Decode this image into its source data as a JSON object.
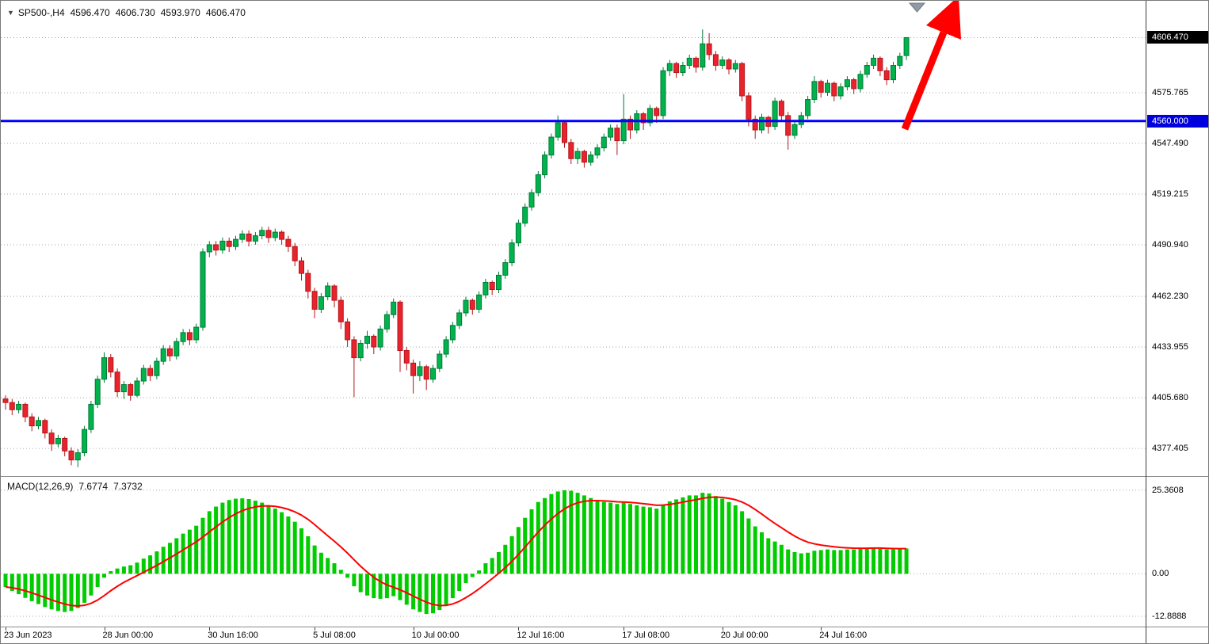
{
  "info_bar": {
    "symbol_period": "SP500-,H4",
    "open": "4596.470",
    "high": "4606.730",
    "low": "4593.970",
    "close": "4606.470"
  },
  "macd_bar": {
    "label": "MACD(12,26,9)",
    "macd_value": "7.6774",
    "signal_value": "7.3732"
  },
  "colors": {
    "bull": "#00b34d",
    "bull_stroke": "#007a36",
    "bear": "#e8232b",
    "bear_stroke": "#b3151c",
    "macd_bar": "#00cc00",
    "signal": "#ff0000",
    "hline": "#0000ff",
    "grid": "#a8a8a8",
    "current_price_bg": "#000000",
    "hline_label_bg": "#0000dd",
    "arrow": "#ff0000",
    "shift_marker": "#8f9aa5"
  },
  "chart_data": {
    "type": "candlestick_with_macd",
    "symbol": "SP500-",
    "timeframe": "H4",
    "ylim": [
      4362,
      4627
    ],
    "price_axis": {
      "gridlines": [
        {
          "value": 4575.765,
          "label": "4575.765"
        },
        {
          "value": 4547.49,
          "label": "4547.490"
        },
        {
          "value": 4519.215,
          "label": "4519.215"
        },
        {
          "value": 4490.94,
          "label": "4490.940"
        },
        {
          "value": 4462.23,
          "label": "4462.230"
        },
        {
          "value": 4433.955,
          "label": "4433.955"
        },
        {
          "value": 4405.68,
          "label": "4405.680"
        },
        {
          "value": 4377.405,
          "label": "4377.405"
        }
      ],
      "current_price": {
        "value": 4606.47,
        "label": "4606.470"
      },
      "hline": {
        "value": 4560.0,
        "label": "4560.000"
      }
    },
    "x_axis": {
      "labels": [
        {
          "index": 0,
          "label": "23 Jun 2023"
        },
        {
          "index": 15,
          "label": "28 Jun 00:00"
        },
        {
          "index": 31,
          "label": "30 Jun 16:00"
        },
        {
          "index": 47,
          "label": "5 Jul 08:00"
        },
        {
          "index": 62,
          "label": "10 Jul 00:00"
        },
        {
          "index": 78,
          "label": "12 Jul 16:00"
        },
        {
          "index": 94,
          "label": "17 Jul 08:00"
        },
        {
          "index": 109,
          "label": "20 Jul 00:00"
        },
        {
          "index": 124,
          "label": "24 Jul 16:00"
        }
      ]
    },
    "candles": [
      [
        4405,
        4407,
        4399,
        4403
      ],
      [
        4403,
        4405,
        4396,
        4399
      ],
      [
        4399,
        4404,
        4397,
        4402
      ],
      [
        4402,
        4403,
        4392,
        4395
      ],
      [
        4395,
        4397,
        4387,
        4390
      ],
      [
        4390,
        4395,
        4388,
        4393
      ],
      [
        4393,
        4394,
        4383,
        4386
      ],
      [
        4386,
        4388,
        4376,
        4380
      ],
      [
        4380,
        4385,
        4378,
        4383
      ],
      [
        4383,
        4384,
        4373,
        4376
      ],
      [
        4376,
        4378,
        4368,
        4371
      ],
      [
        4371,
        4377,
        4367,
        4375
      ],
      [
        4375,
        4390,
        4373,
        4388
      ],
      [
        4388,
        4404,
        4386,
        4402
      ],
      [
        4402,
        4418,
        4400,
        4416
      ],
      [
        4416,
        4431,
        4414,
        4428
      ],
      [
        4428,
        4430,
        4417,
        4420
      ],
      [
        4420,
        4422,
        4406,
        4409
      ],
      [
        4409,
        4415,
        4405,
        4413
      ],
      [
        4413,
        4414,
        4404,
        4407
      ],
      [
        4407,
        4417,
        4406,
        4415
      ],
      [
        4415,
        4424,
        4413,
        4422
      ],
      [
        4422,
        4424,
        4415,
        4418
      ],
      [
        4418,
        4428,
        4416,
        4426
      ],
      [
        4426,
        4435,
        4424,
        4433
      ],
      [
        4433,
        4435,
        4426,
        4429
      ],
      [
        4429,
        4439,
        4427,
        4437
      ],
      [
        4437,
        4444,
        4435,
        4442
      ],
      [
        4442,
        4444,
        4435,
        4438
      ],
      [
        4438,
        4447,
        4436,
        4445
      ],
      [
        4445,
        4489,
        4443,
        4487
      ],
      [
        4487,
        4493,
        4484,
        4491
      ],
      [
        4491,
        4493,
        4485,
        4488
      ],
      [
        4488,
        4495,
        4486,
        4493
      ],
      [
        4493,
        4495,
        4487,
        4490
      ],
      [
        4490,
        4496,
        4488,
        4494
      ],
      [
        4494,
        4499,
        4492,
        4497
      ],
      [
        4497,
        4499,
        4490,
        4493
      ],
      [
        4493,
        4498,
        4491,
        4496
      ],
      [
        4496,
        4501,
        4494,
        4499
      ],
      [
        4499,
        4501,
        4492,
        4495
      ],
      [
        4495,
        4500,
        4493,
        4498
      ],
      [
        4498,
        4499,
        4491,
        4494
      ],
      [
        4494,
        4496,
        4487,
        4490
      ],
      [
        4490,
        4492,
        4479,
        4482
      ],
      [
        4482,
        4484,
        4471,
        4475
      ],
      [
        4475,
        4477,
        4461,
        4465
      ],
      [
        4465,
        4467,
        4450,
        4455
      ],
      [
        4455,
        4464,
        4453,
        4462
      ],
      [
        4462,
        4470,
        4460,
        4468
      ],
      [
        4468,
        4469,
        4456,
        4460
      ],
      [
        4460,
        4462,
        4444,
        4448
      ],
      [
        4448,
        4450,
        4434,
        4438
      ],
      [
        4438,
        4440,
        4406,
        4428
      ],
      [
        4428,
        4438,
        4426,
        4436
      ],
      [
        4436,
        4443,
        4433,
        4440
      ],
      [
        4440,
        4441,
        4430,
        4434
      ],
      [
        4434,
        4446,
        4432,
        4444
      ],
      [
        4444,
        4454,
        4442,
        4452
      ],
      [
        4452,
        4461,
        4450,
        4459
      ],
      [
        4459,
        4460,
        4420,
        4432
      ],
      [
        4432,
        4434,
        4421,
        4425
      ],
      [
        4425,
        4427,
        4408,
        4418
      ],
      [
        4418,
        4426,
        4415,
        4423
      ],
      [
        4423,
        4424,
        4410,
        4416
      ],
      [
        4416,
        4424,
        4414,
        4422
      ],
      [
        4422,
        4432,
        4420,
        4430
      ],
      [
        4430,
        4440,
        4428,
        4438
      ],
      [
        4438,
        4448,
        4436,
        4446
      ],
      [
        4446,
        4455,
        4444,
        4453
      ],
      [
        4453,
        4462,
        4451,
        4460
      ],
      [
        4460,
        4461,
        4452,
        4455
      ],
      [
        4455,
        4465,
        4453,
        4463
      ],
      [
        4463,
        4472,
        4461,
        4470
      ],
      [
        4470,
        4471,
        4463,
        4466
      ],
      [
        4466,
        4476,
        4464,
        4474
      ],
      [
        4474,
        4483,
        4472,
        4481
      ],
      [
        4481,
        4494,
        4479,
        4492
      ],
      [
        4492,
        4505,
        4490,
        4503
      ],
      [
        4503,
        4514,
        4501,
        4512
      ],
      [
        4512,
        4522,
        4510,
        4520
      ],
      [
        4520,
        4532,
        4518,
        4530
      ],
      [
        4530,
        4543,
        4528,
        4541
      ],
      [
        4541,
        4553,
        4539,
        4551
      ],
      [
        4551,
        4563,
        4549,
        4559
      ],
      [
        4559,
        4560,
        4545,
        4548
      ],
      [
        4548,
        4550,
        4536,
        4539
      ],
      [
        4539,
        4545,
        4536,
        4543
      ],
      [
        4543,
        4544,
        4534,
        4537
      ],
      [
        4537,
        4543,
        4535,
        4541
      ],
      [
        4541,
        4547,
        4539,
        4545
      ],
      [
        4545,
        4553,
        4543,
        4551
      ],
      [
        4551,
        4558,
        4549,
        4556
      ],
      [
        4556,
        4558,
        4541,
        4549
      ],
      [
        4549,
        4575,
        4547,
        4561
      ],
      [
        4561,
        4563,
        4550,
        4555
      ],
      [
        4555,
        4566,
        4553,
        4564
      ],
      [
        4564,
        4565,
        4555,
        4559
      ],
      [
        4559,
        4569,
        4557,
        4567
      ],
      [
        4567,
        4568,
        4559,
        4563
      ],
      [
        4563,
        4590,
        4561,
        4588
      ],
      [
        4588,
        4594,
        4585,
        4592
      ],
      [
        4592,
        4593,
        4584,
        4587
      ],
      [
        4587,
        4593,
        4585,
        4591
      ],
      [
        4591,
        4597,
        4589,
        4595
      ],
      [
        4595,
        4596,
        4587,
        4590
      ],
      [
        4590,
        4611,
        4588,
        4603
      ],
      [
        4603,
        4609,
        4594,
        4597
      ],
      [
        4597,
        4599,
        4588,
        4591
      ],
      [
        4591,
        4596,
        4589,
        4594
      ],
      [
        4594,
        4595,
        4586,
        4589
      ],
      [
        4589,
        4594,
        4587,
        4592
      ],
      [
        4592,
        4593,
        4571,
        4574
      ],
      [
        4574,
        4576,
        4557,
        4561
      ],
      [
        4561,
        4563,
        4550,
        4555
      ],
      [
        4555,
        4564,
        4553,
        4562
      ],
      [
        4562,
        4563,
        4553,
        4557
      ],
      [
        4557,
        4573,
        4555,
        4571
      ],
      [
        4571,
        4572,
        4560,
        4563
      ],
      [
        4563,
        4565,
        4544,
        4552
      ],
      [
        4552,
        4560,
        4550,
        4558
      ],
      [
        4558,
        4565,
        4556,
        4563
      ],
      [
        4563,
        4574,
        4561,
        4572
      ],
      [
        4572,
        4585,
        4570,
        4582
      ],
      [
        4582,
        4583,
        4573,
        4576
      ],
      [
        4576,
        4583,
        4574,
        4581
      ],
      [
        4581,
        4582,
        4571,
        4574
      ],
      [
        4574,
        4581,
        4572,
        4579
      ],
      [
        4579,
        4585,
        4577,
        4583
      ],
      [
        4583,
        4584,
        4575,
        4578
      ],
      [
        4578,
        4588,
        4576,
        4586
      ],
      [
        4586,
        4593,
        4584,
        4591
      ],
      [
        4591,
        4597,
        4589,
        4595
      ],
      [
        4595,
        4596,
        4585,
        4588
      ],
      [
        4588,
        4590,
        4580,
        4583
      ],
      [
        4583,
        4593,
        4581,
        4591
      ],
      [
        4591,
        4598,
        4589,
        4596
      ],
      [
        4596.47,
        4606.73,
        4593.97,
        4606.47
      ]
    ],
    "macd": {
      "params": [
        12,
        26,
        9
      ],
      "ylim": [
        -16.03,
        29.43
      ],
      "axis_labels": [
        {
          "value": 25.3608,
          "label": "25.3608"
        },
        {
          "value": 0,
          "label": "0.00"
        },
        {
          "value": -12.8888,
          "label": "-12.8888"
        }
      ],
      "histogram": [
        -4.0,
        -5.2,
        -6.2,
        -7.3,
        -8.3,
        -9.2,
        -10.1,
        -10.8,
        -11.3,
        -11.6,
        -11.3,
        -10.4,
        -8.8,
        -6.6,
        -4.0,
        -1.2,
        0.8,
        1.6,
        2.2,
        2.6,
        3.4,
        4.6,
        5.6,
        6.8,
        8.2,
        9.4,
        10.8,
        12.2,
        13.4,
        14.6,
        17.0,
        19.0,
        20.4,
        21.6,
        22.4,
        22.8,
        22.9,
        22.7,
        22.2,
        21.6,
        20.8,
        19.8,
        18.7,
        17.4,
        15.8,
        13.8,
        11.4,
        8.6,
        6.4,
        4.8,
        3.2,
        1.2,
        -1.2,
        -3.8,
        -5.6,
        -6.6,
        -7.4,
        -7.6,
        -7.4,
        -6.8,
        -8.0,
        -9.4,
        -10.8,
        -11.6,
        -12.2,
        -12.0,
        -11.0,
        -9.4,
        -7.4,
        -5.2,
        -2.8,
        -1.0,
        1.0,
        3.2,
        4.8,
        6.6,
        8.8,
        11.4,
        14.2,
        17.0,
        19.6,
        21.8,
        23.0,
        24.2,
        25.0,
        25.36,
        25.2,
        24.6,
        23.8,
        23.0,
        22.2,
        21.8,
        21.6,
        21.2,
        21.6,
        21.2,
        20.8,
        20.4,
        20.2,
        19.8,
        21.0,
        22.0,
        22.6,
        23.2,
        23.8,
        23.8,
        24.6,
        24.4,
        23.6,
        22.8,
        21.8,
        20.8,
        19.0,
        16.8,
        14.4,
        12.6,
        10.8,
        9.8,
        8.8,
        7.4,
        6.6,
        6.2,
        6.4,
        7.0,
        7.2,
        7.4,
        7.2,
        7.2,
        7.4,
        7.4,
        7.6,
        7.8,
        8.0,
        7.8,
        7.4,
        7.4,
        7.5,
        7.6774
      ],
      "signal_method": "ema9_of_histogram",
      "macd_last": 7.6774,
      "signal_last": 7.3732
    },
    "annotations": {
      "up_arrow": true,
      "chart_shift_marker": true,
      "support_line_value": 4560.0
    }
  }
}
